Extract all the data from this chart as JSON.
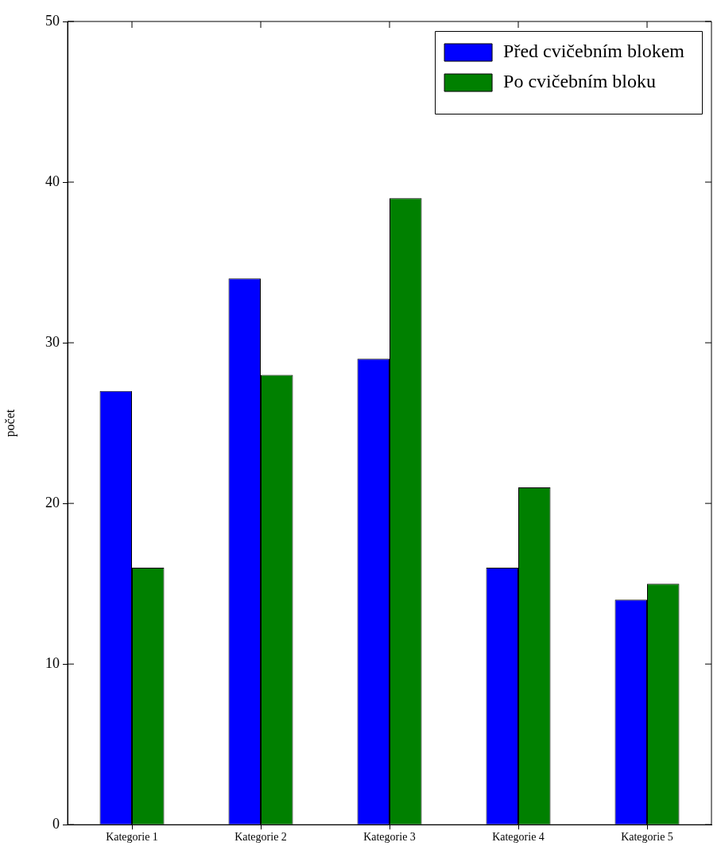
{
  "chart_data": {
    "type": "bar",
    "ylabel": "počet",
    "categories": [
      "Kategorie 1",
      "Kategorie 2",
      "Kategorie 3",
      "Kategorie 4",
      "Kategorie 5"
    ],
    "series": [
      {
        "name": "Před cvičebním blokem",
        "color": "#0000ff",
        "values": [
          27,
          34,
          29,
          16,
          14
        ]
      },
      {
        "name": "Po cvičebním bloku",
        "color": "#008000",
        "values": [
          16,
          28,
          39,
          21,
          15
        ]
      }
    ],
    "ylim": [
      0,
      50
    ],
    "yticks": [
      0,
      10,
      20,
      30,
      40,
      50
    ],
    "grid": false,
    "legend": "top right"
  }
}
